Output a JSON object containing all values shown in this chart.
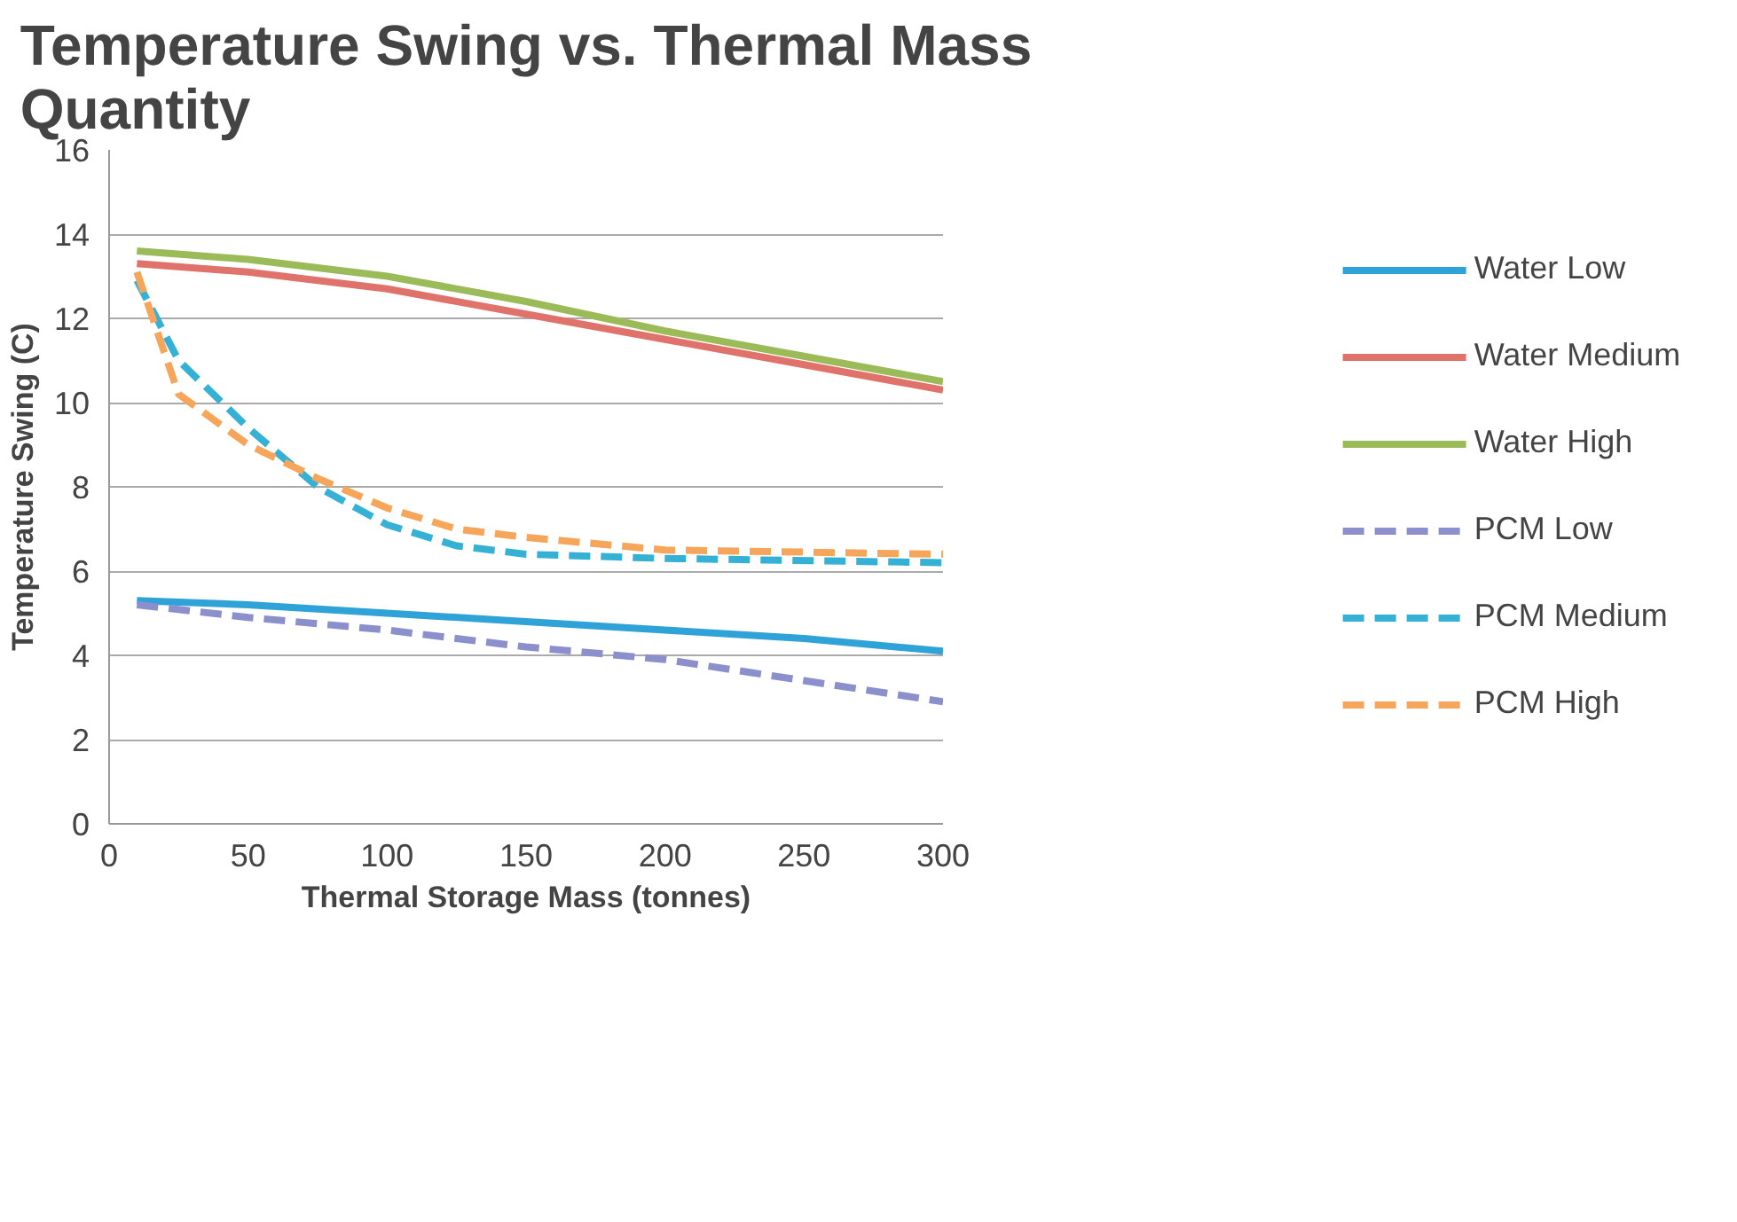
{
  "chart_data": {
    "type": "line",
    "title": "Temperature Swing vs. Thermal Mass Quantity",
    "xlabel": "Thermal Storage Mass (tonnes)",
    "ylabel": "Temperature Swing (C)",
    "xlim": [
      0,
      300
    ],
    "ylim": [
      0,
      16
    ],
    "xticks": [
      0,
      50,
      100,
      150,
      200,
      250,
      300
    ],
    "yticks": [
      0,
      2,
      4,
      6,
      8,
      10,
      12,
      14,
      16
    ],
    "grid": "y",
    "legend": "right",
    "marker": "none",
    "series": [
      {
        "name": "Water Low",
        "color": "#2fa3d7",
        "line_style": "solid",
        "x": [
          10,
          50,
          100,
          150,
          200,
          250,
          300
        ],
        "values": [
          5.3,
          5.2,
          5.0,
          4.8,
          4.6,
          4.4,
          4.1
        ]
      },
      {
        "name": "Water Medium",
        "color": "#e0726c",
        "line_style": "solid",
        "x": [
          10,
          50,
          100,
          150,
          200,
          250,
          300
        ],
        "values": [
          13.3,
          13.1,
          12.7,
          12.1,
          11.5,
          10.9,
          10.3
        ]
      },
      {
        "name": "Water High",
        "color": "#9bbb59",
        "line_style": "solid",
        "x": [
          10,
          50,
          100,
          150,
          200,
          250,
          300
        ],
        "values": [
          13.6,
          13.4,
          13.0,
          12.4,
          11.7,
          11.1,
          10.5
        ]
      },
      {
        "name": "PCM Low",
        "color": "#8b8fcb",
        "line_style": "dashed",
        "x": [
          10,
          50,
          100,
          150,
          200,
          250,
          300
        ],
        "values": [
          5.2,
          4.9,
          4.6,
          4.2,
          3.9,
          3.4,
          2.9
        ]
      },
      {
        "name": "PCM Medium",
        "color": "#36b1d6",
        "line_style": "dashed",
        "x": [
          10,
          25,
          50,
          75,
          100,
          125,
          150,
          200,
          300
        ],
        "values": [
          12.9,
          11.0,
          9.4,
          8.0,
          7.1,
          6.6,
          6.4,
          6.3,
          6.2
        ]
      },
      {
        "name": "PCM High",
        "color": "#f5a65b",
        "line_style": "dashed",
        "x": [
          10,
          25,
          50,
          75,
          100,
          125,
          150,
          200,
          300
        ],
        "values": [
          13.1,
          10.2,
          9.0,
          8.2,
          7.5,
          7.0,
          6.8,
          6.5,
          6.4
        ]
      }
    ]
  }
}
